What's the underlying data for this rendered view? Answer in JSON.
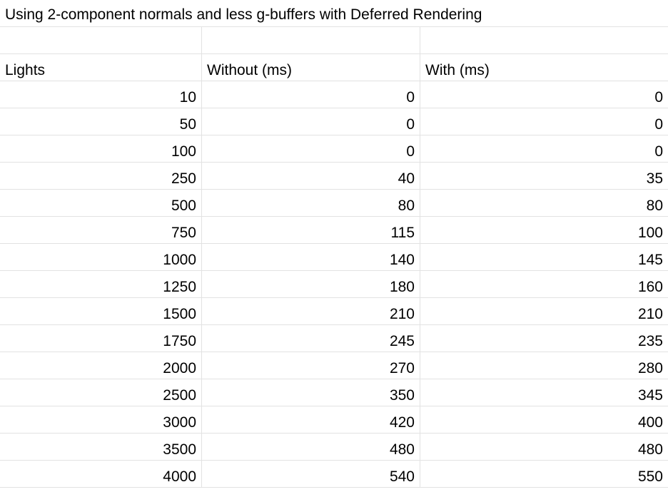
{
  "sheet": {
    "title": "Using 2-component normals and less g-buffers with Deferred Rendering",
    "headers": [
      "Lights",
      "Without (ms)",
      "With (ms)"
    ],
    "rows": [
      [
        "10",
        "0",
        "0"
      ],
      [
        "50",
        "0",
        "0"
      ],
      [
        "100",
        "0",
        "0"
      ],
      [
        "250",
        "40",
        "35"
      ],
      [
        "500",
        "80",
        "80"
      ],
      [
        "750",
        "115",
        "100"
      ],
      [
        "1000",
        "140",
        "145"
      ],
      [
        "1250",
        "180",
        "160"
      ],
      [
        "1500",
        "210",
        "210"
      ],
      [
        "1750",
        "245",
        "235"
      ],
      [
        "2000",
        "270",
        "280"
      ],
      [
        "2500",
        "350",
        "345"
      ],
      [
        "3000",
        "420",
        "400"
      ],
      [
        "3500",
        "480",
        "480"
      ],
      [
        "4000",
        "540",
        "550"
      ]
    ]
  }
}
